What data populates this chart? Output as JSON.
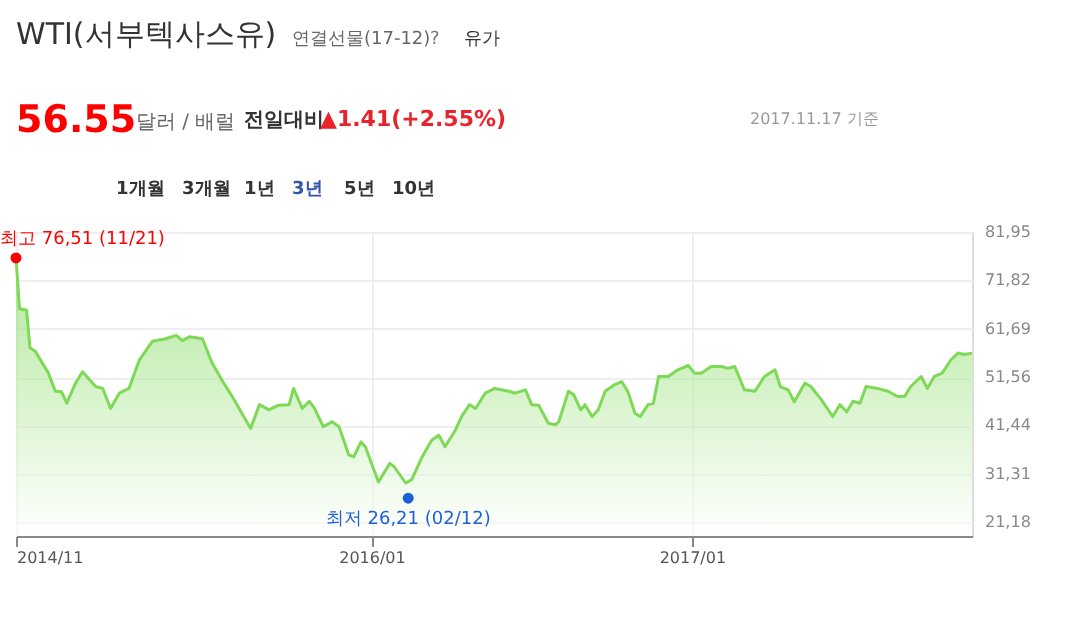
{
  "chart_data": {
    "type": "area",
    "title": "WTI(서부텍사스유)",
    "subtitle": "연결선물(17-12)",
    "annotations": [
      "?",
      "유가",
      "56.55",
      "달러 / 배럴",
      "전일대비",
      "▲1.41(+2.55%)",
      "2017.11.17 기준",
      "1개월",
      "3개월",
      "1년",
      "3년",
      "5년",
      "10년",
      {
        "text": "최고 76,51 (11/21)",
        "x": "2014-11-21",
        "y": 76.51
      },
      {
        "text": "최저 26,21 (02/12)",
        "x": "2016-02-12",
        "y": 26.21
      }
    ],
    "series": [
      {
        "color": "#7ed957",
        "x": [
          "2014-11-21",
          "2014-11-25",
          "2014-12-03",
          "2014-12-07",
          "2014-12-13",
          "2014-12-28",
          "2015-01-05",
          "2015-01-12",
          "2015-01-18",
          "2015-01-28",
          "2015-02-05",
          "2015-02-13",
          "2015-02-20",
          "2015-02-28",
          "2015-03-09",
          "2015-03-19",
          "2015-03-30",
          "2015-04-11",
          "2015-04-26",
          "2015-05-11",
          "2015-05-23",
          "2015-05-30",
          "2015-06-07",
          "2015-06-22",
          "2015-07-03",
          "2015-07-15",
          "2015-07-26",
          "2015-08-07",
          "2015-08-16",
          "2015-08-26",
          "2015-09-06",
          "2015-09-17",
          "2015-09-29",
          "2015-10-04",
          "2015-10-14",
          "2015-10-22",
          "2015-10-28",
          "2015-11-07",
          "2015-11-17",
          "2015-11-25",
          "2015-12-06",
          "2015-12-12",
          "2015-12-20",
          "2015-12-25",
          "2016-01-09",
          "2016-01-22",
          "2016-01-27",
          "2016-02-09",
          "2016-02-16",
          "2016-02-28",
          "2016-03-10",
          "2016-03-18",
          "2016-03-25",
          "2016-04-06",
          "2016-04-13",
          "2016-04-22",
          "2016-04-29",
          "2016-05-10",
          "2016-05-21",
          "2016-06-06",
          "2016-06-13",
          "2016-06-25",
          "2016-07-02",
          "2016-07-10",
          "2016-07-21",
          "2016-07-29",
          "2016-08-02",
          "2016-08-13",
          "2016-08-19",
          "2016-08-27",
          "2016-09-01",
          "2016-09-09",
          "2016-09-16",
          "2016-09-24",
          "2016-10-05",
          "2016-10-13",
          "2016-10-20",
          "2016-10-28",
          "2016-11-03",
          "2016-11-12",
          "2016-11-18",
          "2016-11-24",
          "2016-12-05",
          "2016-12-16",
          "2016-12-28",
          "2017-01-04",
          "2017-01-12",
          "2017-01-23",
          "2017-02-04",
          "2017-02-11",
          "2017-02-19",
          "2017-03-02",
          "2017-03-14",
          "2017-03-25",
          "2017-04-06",
          "2017-04-12",
          "2017-04-21",
          "2017-04-28",
          "2017-05-10",
          "2017-05-17",
          "2017-05-29",
          "2017-06-11",
          "2017-06-19",
          "2017-06-27",
          "2017-07-04",
          "2017-07-12",
          "2017-07-19",
          "2017-08-01",
          "2017-08-13",
          "2017-08-24",
          "2017-09-01",
          "2017-09-08",
          "2017-09-20",
          "2017-09-27",
          "2017-10-05",
          "2017-10-14",
          "2017-10-24",
          "2017-11-01",
          "2017-11-08",
          "2017-11-17"
        ],
        "values": [
          76.51,
          65.9,
          65.6,
          57.7,
          57.0,
          52.4,
          48.6,
          48.5,
          46.1,
          50.3,
          52.7,
          51.0,
          49.6,
          49.2,
          45.0,
          48.2,
          49.2,
          55.2,
          59.1,
          59.6,
          60.3,
          59.2,
          60.0,
          59.6,
          54.5,
          50.7,
          47.5,
          43.7,
          40.8,
          45.8,
          44.7,
          45.7,
          45.8,
          49.2,
          45.0,
          46.5,
          45.0,
          41.2,
          42.2,
          41.2,
          35.3,
          34.9,
          38.0,
          37.0,
          29.6,
          33.5,
          32.8,
          29.4,
          30.1,
          34.9,
          38.4,
          39.4,
          37.0,
          40.5,
          43.3,
          45.8,
          45.0,
          48.2,
          49.2,
          48.6,
          48.2,
          48.9,
          45.8,
          45.7,
          41.9,
          41.6,
          42.2,
          48.6,
          47.9,
          44.7,
          45.8,
          43.3,
          44.7,
          48.6,
          50.0,
          50.6,
          48.5,
          44.0,
          43.3,
          45.8,
          46.1,
          51.7,
          51.7,
          53.1,
          54.0,
          52.4,
          52.4,
          53.8,
          53.8,
          53.4,
          53.8,
          48.9,
          48.6,
          51.7,
          53.1,
          49.6,
          48.9,
          46.4,
          50.3,
          49.6,
          46.8,
          43.3,
          45.8,
          44.3,
          46.5,
          46.1,
          49.6,
          49.2,
          48.6,
          47.5,
          47.5,
          49.6,
          51.7,
          49.2,
          51.7,
          52.4,
          55.2,
          56.6,
          56.3,
          56.55
        ]
      },
      {
        "type": "scatter",
        "color": "#ff0000",
        "x": [
          "2014-11-21"
        ],
        "values": [
          76.51
        ]
      },
      {
        "type": "scatter",
        "color": "#1f5fd8",
        "x": [
          "2016-02-12"
        ],
        "values": [
          26.21
        ]
      }
    ],
    "xlim": [
      "2014-11-21",
      "2017-11-17"
    ],
    "xticks": [
      {
        "value": "2014-11-21",
        "label": "2014/11"
      },
      {
        "value": "2016-01-01",
        "label": "2016/01"
      },
      {
        "value": "2017-01-01",
        "label": "2017/01"
      }
    ],
    "ylim": [
      18.3,
      81.95
    ],
    "yticks": [
      {
        "value": 21.18,
        "label": "21,18"
      },
      {
        "value": 31.31,
        "label": "31,31"
      },
      {
        "value": 41.44,
        "label": "41,44"
      },
      {
        "value": 51.56,
        "label": "51,56"
      },
      {
        "value": 61.69,
        "label": "61,69"
      },
      {
        "value": 71.82,
        "label": "71,82"
      },
      {
        "value": 81.95,
        "label": "81,95"
      }
    ],
    "grid": true,
    "line_style": "solid"
  }
}
